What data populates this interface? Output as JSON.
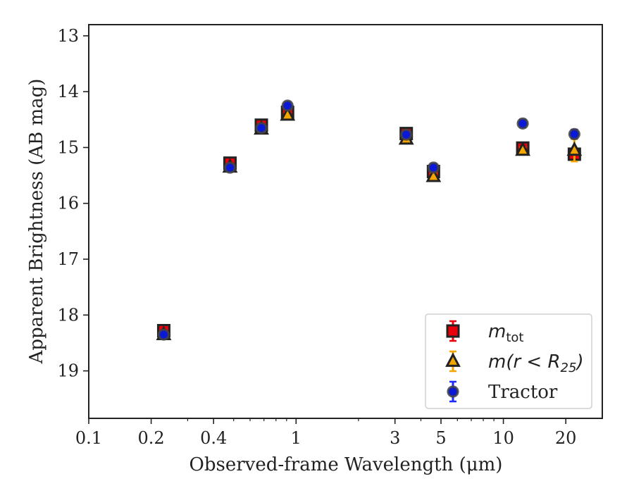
{
  "chart_data": {
    "type": "scatter",
    "title": "",
    "xlabel": "Observed-frame Wavelength (μm)",
    "ylabel": "Apparent Brightness (AB mag)",
    "xscale": "log",
    "xlim": [
      0.1,
      30
    ],
    "ylim": [
      19.85,
      12.8
    ],
    "y_inverted": true,
    "x_ticks": [
      0.1,
      0.2,
      0.4,
      1,
      3,
      5,
      10,
      20
    ],
    "x_tick_labels": [
      "0.1",
      "0.2",
      "0.4",
      "1",
      "3",
      "5",
      "10",
      "20"
    ],
    "y_ticks": [
      13,
      14,
      15,
      16,
      17,
      18,
      19
    ],
    "y_tick_labels": [
      "13",
      "14",
      "15",
      "16",
      "17",
      "18",
      "19"
    ],
    "grid": false,
    "legend_position": "bottom-right",
    "series": [
      {
        "name": "m_tot",
        "legend_parts": {
          "main": "m",
          "sub": "tot"
        },
        "marker": "square",
        "color": "#e8000b",
        "edge_color": "#222222",
        "errorbar_color": "#e8000b",
        "points": [
          {
            "x": 0.23,
            "y": 18.28,
            "err": 0.08
          },
          {
            "x": 0.48,
            "y": 15.28,
            "err": 0.05
          },
          {
            "x": 0.68,
            "y": 14.6,
            "err": 0.05
          },
          {
            "x": 0.91,
            "y": 14.37,
            "err": 0.05
          },
          {
            "x": 3.4,
            "y": 14.75,
            "err": 0.05
          },
          {
            "x": 4.6,
            "y": 15.43,
            "err": 0.08
          },
          {
            "x": 12.4,
            "y": 15.01,
            "err": 0.06
          },
          {
            "x": 22.0,
            "y": 15.12,
            "err": 0.1
          }
        ]
      },
      {
        "name": "m(r < R_25)",
        "legend_parts": {
          "main": "m(r < R",
          "sub": "25",
          "close": ")"
        },
        "marker": "triangle",
        "color": "#f5a500",
        "edge_color": "#222222",
        "errorbar_color": "#f5a500",
        "points": [
          {
            "x": 0.23,
            "y": 18.35,
            "err": 0.04
          },
          {
            "x": 0.48,
            "y": 15.35,
            "err": 0.04
          },
          {
            "x": 0.68,
            "y": 14.67,
            "err": 0.04
          },
          {
            "x": 0.91,
            "y": 14.42,
            "err": 0.04
          },
          {
            "x": 3.4,
            "y": 14.85,
            "err": 0.04
          },
          {
            "x": 4.6,
            "y": 15.52,
            "err": 0.05
          },
          {
            "x": 12.4,
            "y": 15.05,
            "err": 0.05
          },
          {
            "x": 22.0,
            "y": 15.05,
            "err": 0.2
          }
        ]
      },
      {
        "name": "Tractor",
        "marker": "circle",
        "color": "#0a18d8",
        "edge_color": "#444444",
        "errorbar_color": "#1a2bff",
        "points": [
          {
            "x": 0.23,
            "y": 18.35,
            "err": 0.03
          },
          {
            "x": 0.48,
            "y": 15.36,
            "err": 0.03
          },
          {
            "x": 0.68,
            "y": 14.65,
            "err": 0.03
          },
          {
            "x": 0.91,
            "y": 14.25,
            "err": 0.06
          },
          {
            "x": 3.4,
            "y": 14.77,
            "err": 0.03
          },
          {
            "x": 4.6,
            "y": 15.36,
            "err": 0.07
          },
          {
            "x": 12.4,
            "y": 14.57,
            "err": 0.07
          },
          {
            "x": 22.0,
            "y": 14.76,
            "err": 0.08
          }
        ]
      }
    ]
  }
}
